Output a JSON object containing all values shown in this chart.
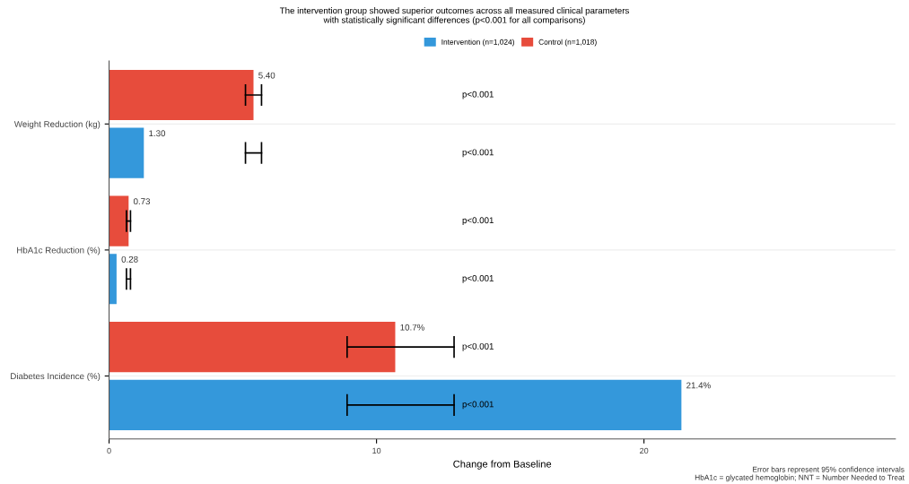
{
  "chart_data": {
    "type": "bar",
    "orientation": "horizontal",
    "title": "The intervention group showed superior outcomes across all measured clinical parameters\nwith statistically significant differences (p<0.001 for all comparisons)",
    "xlabel": "Change from Baseline",
    "categories": [
      "Weight Reduction (kg)",
      "HbA1c Reduction (%)",
      "Diabetes Incidence (%)"
    ],
    "series": [
      {
        "name": "Intervention (n=1,024)",
        "color": "#3498db",
        "values": [
          1.3,
          0.28,
          21.4
        ],
        "value_labels": [
          "1.30",
          "0.28",
          "21.4%"
        ],
        "errors": [
          [
            5.1,
            5.7
          ],
          [
            0.65,
            0.8
          ],
          [
            8.9,
            12.9
          ]
        ]
      },
      {
        "name": "Control (n=1,018)",
        "color": "#e74c3c",
        "values": [
          5.4,
          0.73,
          10.7
        ],
        "value_labels": [
          "5.40",
          "0.73",
          "10.7%"
        ],
        "errors": [
          [
            5.1,
            5.7
          ],
          [
            0.65,
            0.8
          ],
          [
            8.9,
            12.9
          ]
        ]
      }
    ],
    "annotations": [
      "p<0.001",
      "p<0.001",
      "p<0.001",
      "p<0.001",
      "p<0.001",
      "p<0.001",
      "Error bars represent 95% confidence intervals\nHbA1c = glycated hemoglobin; NNT = Number Needed to Treat"
    ],
    "xlim": [
      0,
      29.4
    ],
    "xticks": [
      0,
      10,
      20
    ],
    "grid": "y",
    "legend": "top"
  }
}
